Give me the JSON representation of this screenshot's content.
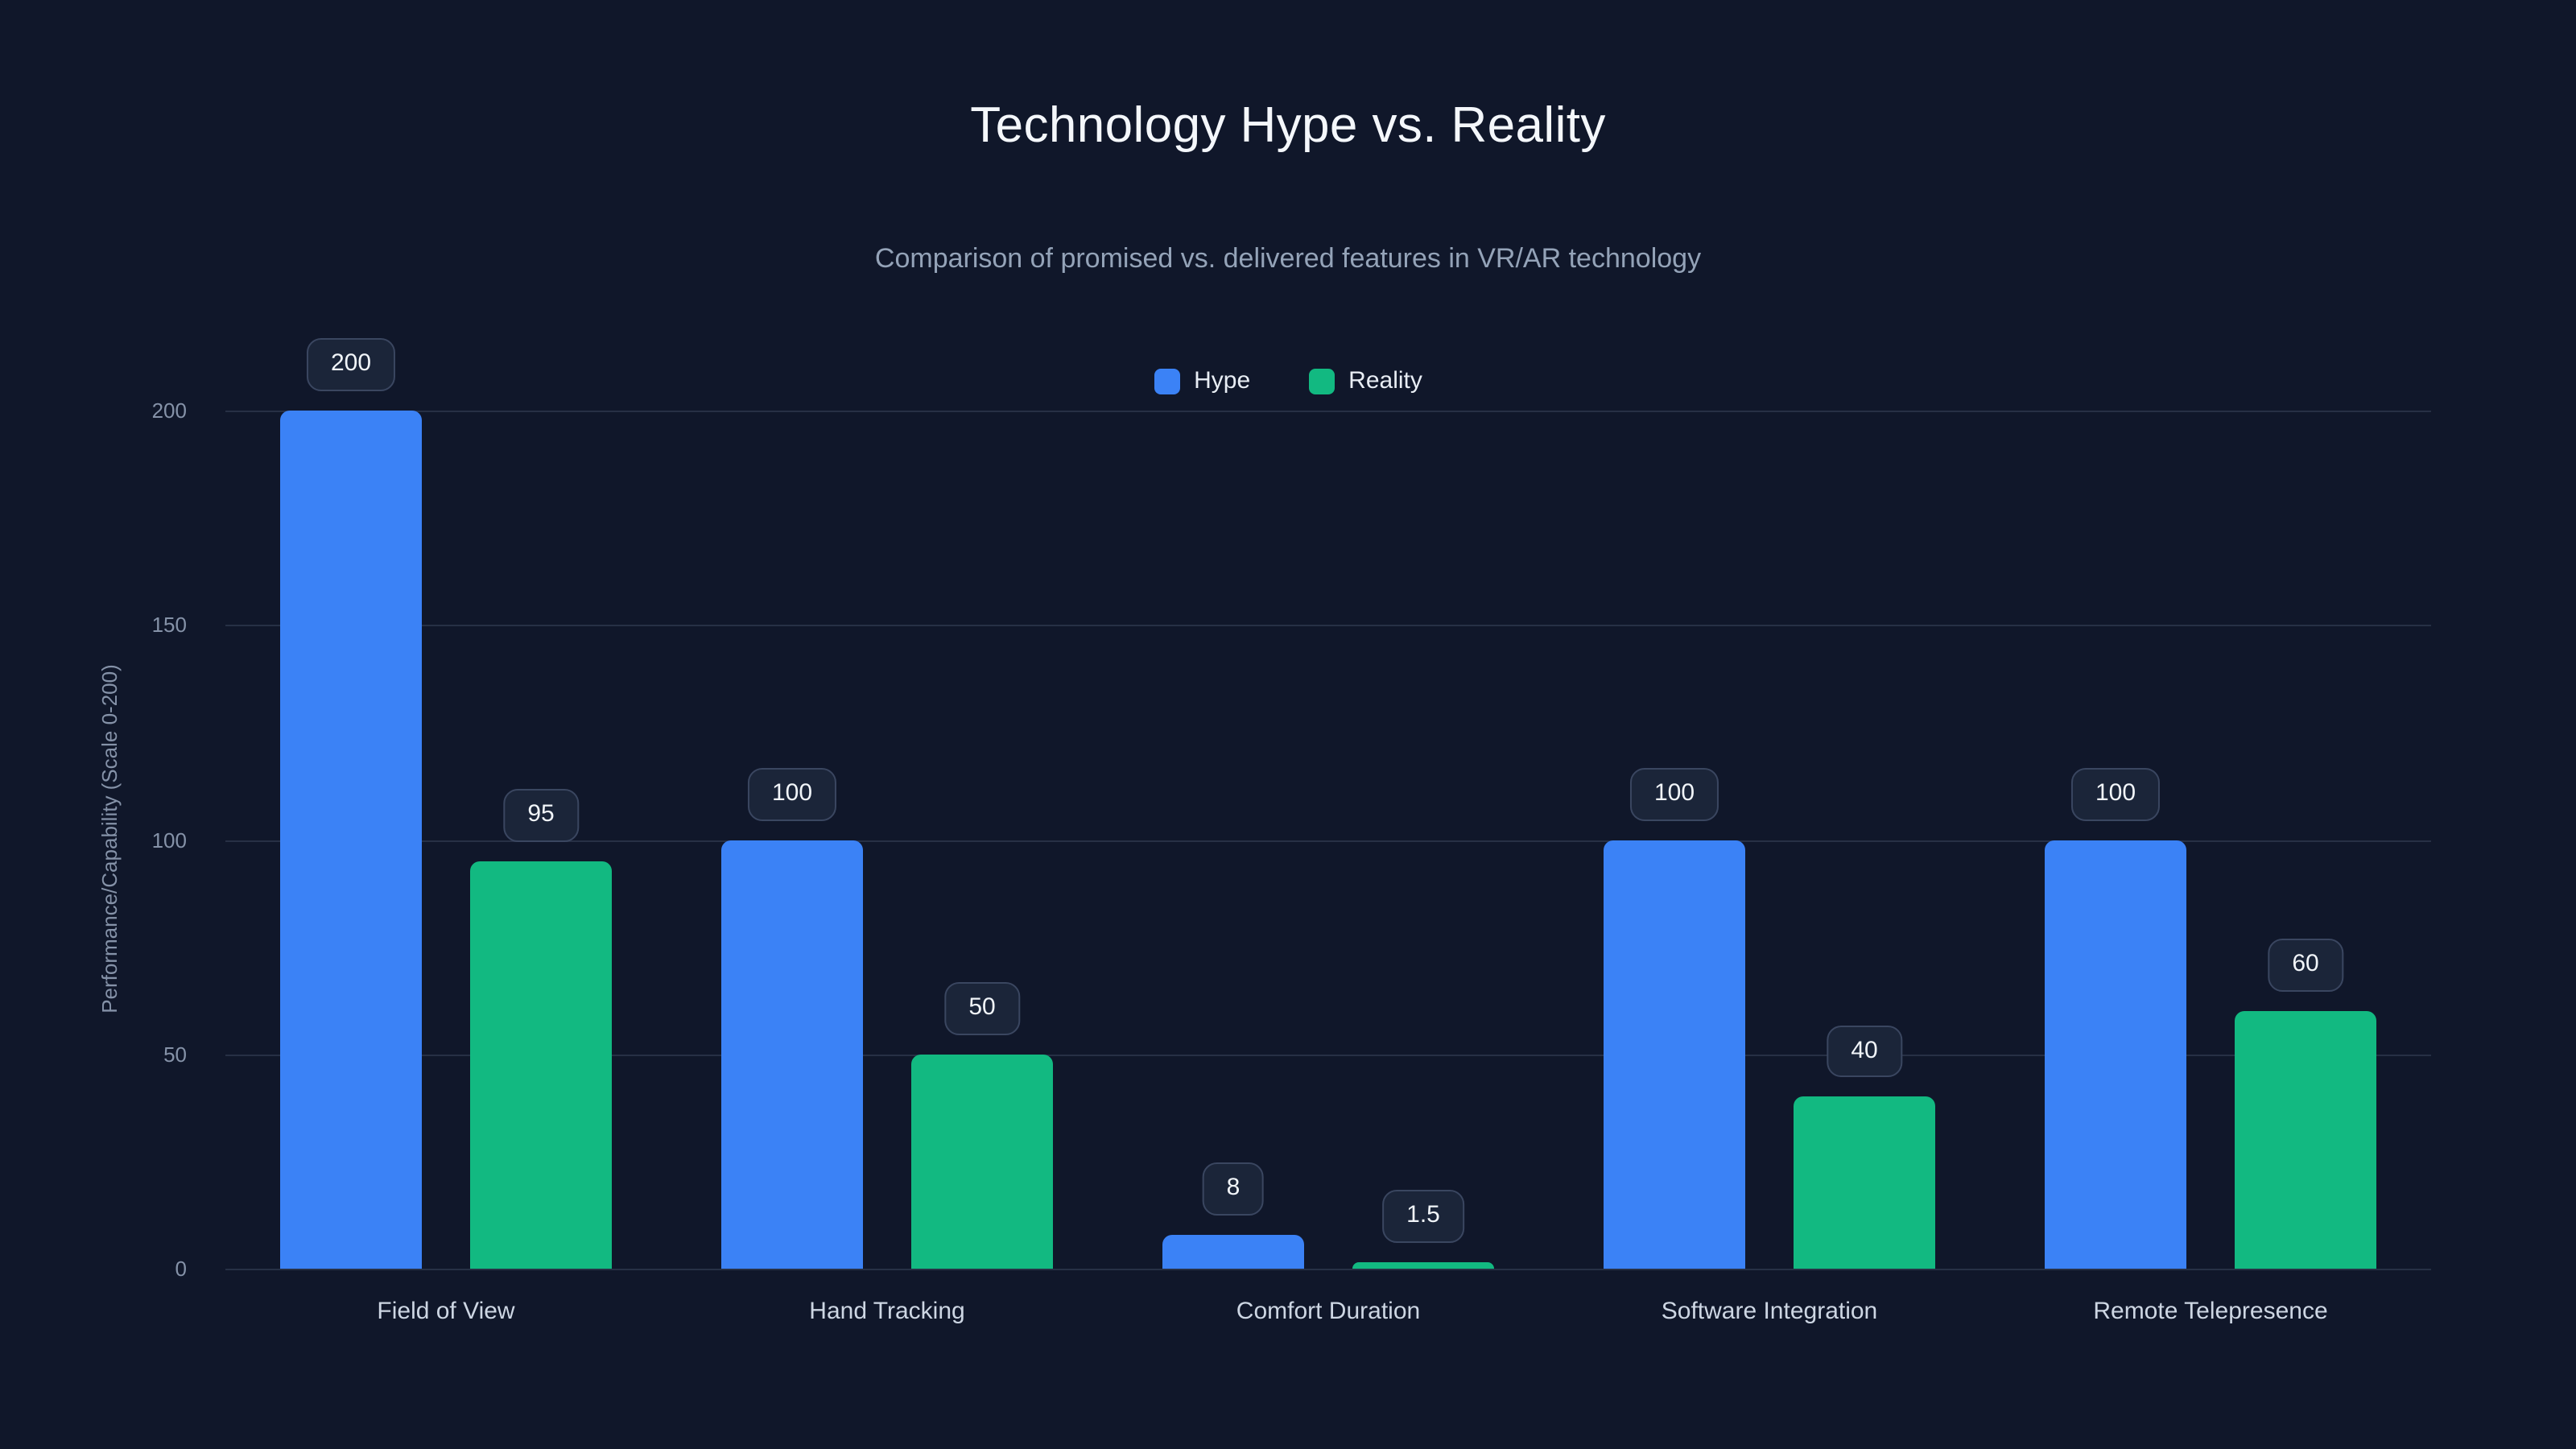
{
  "title": "Technology Hype vs. Reality",
  "subtitle": "Comparison of promised vs. delivered features in VR/AR technology",
  "legend": {
    "items": [
      {
        "label": "Hype",
        "color": "#3b82f6"
      },
      {
        "label": "Reality",
        "color": "#12b981"
      }
    ]
  },
  "y_axis": {
    "title": "Performance/Capability (Scale 0-200)",
    "ticks": [
      0,
      50,
      100,
      150,
      200
    ]
  },
  "colors": {
    "background": "#10172a",
    "hype_bar": "#3b82f6",
    "reality_bar": "#12b981",
    "badge_background": "#1b2539",
    "badge_border": "#3a4660",
    "title_text": "#f4f7fb",
    "subtitle_text": "#94a3b8",
    "axis_text": "#8592a8"
  },
  "chart_data": {
    "type": "bar",
    "title": "Technology Hype vs. Reality",
    "subtitle": "Comparison of promised vs. delivered features in VR/AR technology",
    "categories": [
      "Field of View",
      "Hand Tracking",
      "Comfort Duration",
      "Software Integration",
      "Remote Telepresence"
    ],
    "series": [
      {
        "name": "Hype",
        "color": "#3b82f6",
        "values": [
          200,
          100,
          8,
          100,
          100
        ]
      },
      {
        "name": "Reality",
        "color": "#12b981",
        "values": [
          95,
          50,
          1.5,
          40,
          60
        ]
      }
    ],
    "data_labels": [
      [
        "200",
        "100",
        "8",
        "100",
        "100"
      ],
      [
        "95",
        "50",
        "1.5",
        "40",
        "60"
      ]
    ],
    "xlabel": "",
    "ylabel": "Performance/Capability (Scale 0-200)",
    "ylim": [
      0,
      200
    ],
    "grid": true,
    "legend_position": "top"
  }
}
